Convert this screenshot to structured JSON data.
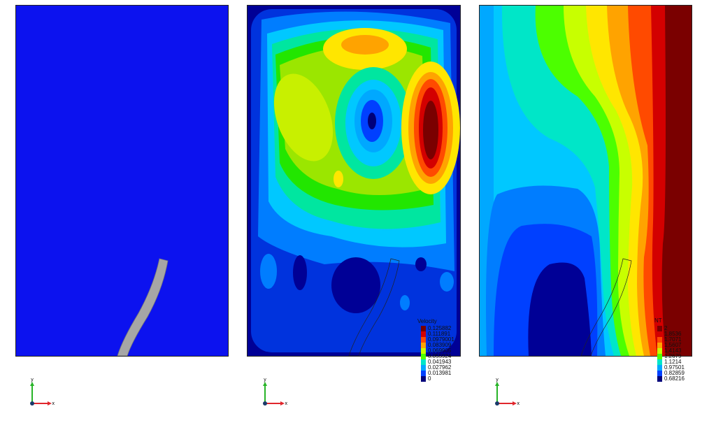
{
  "panels": [
    {
      "name": "material-field"
    },
    {
      "name": "velocity-field",
      "legend": {
        "title": "Velocity",
        "values": [
          "0.125882",
          "0.111891",
          "0.0979001",
          "0.083909",
          "0.069905",
          "0.055924",
          "0.041943",
          "0.027962",
          "0.013981",
          "0"
        ],
        "colors": [
          "#7a0000",
          "#d30000",
          "#ff4a00",
          "#ffa300",
          "#c8ff00",
          "#4cff00",
          "#00e6c8",
          "#00a8ff",
          "#0040ff",
          "#00007a"
        ]
      }
    },
    {
      "name": "temperature-field",
      "legend": {
        "title": "NT",
        "values": [
          "2",
          "1.8536",
          "1.7071",
          "1.5607",
          "1.4143",
          "1.2679",
          "1.1214",
          "0.97501",
          "0.82859",
          "0.68216"
        ],
        "colors": [
          "#7a0000",
          "#d30000",
          "#ff4a00",
          "#ffa300",
          "#c8ff00",
          "#4cff00",
          "#00e6c8",
          "#00a8ff",
          "#0040ff",
          "#00007a"
        ]
      }
    }
  ],
  "axis_triad": {
    "x_label": "x",
    "y_label": "y"
  }
}
